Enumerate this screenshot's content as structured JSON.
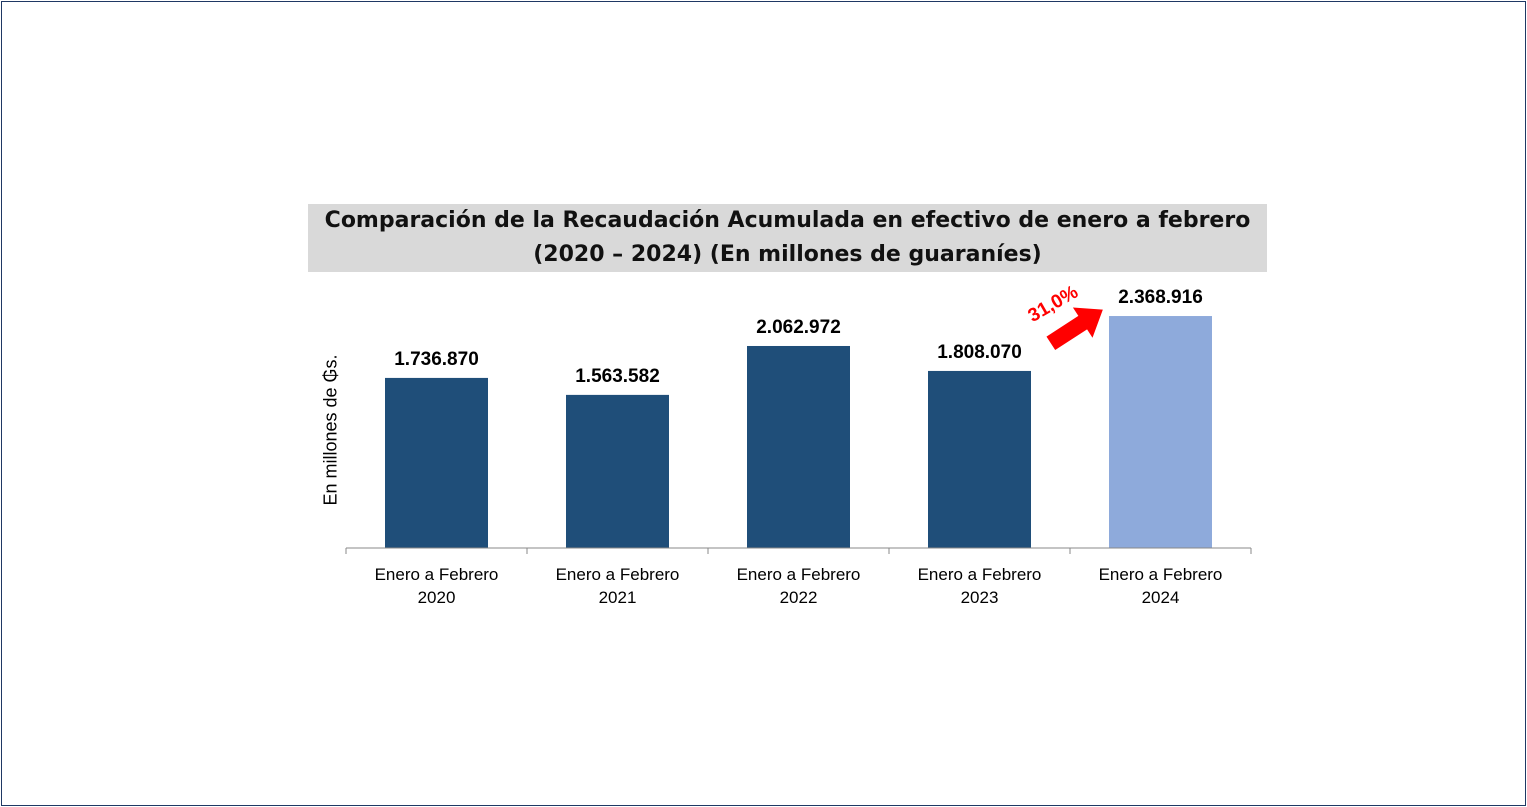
{
  "chart_data": {
    "type": "bar",
    "title_line1": "Comparación de la Recaudación Acumulada en efectivo de enero a febrero",
    "title_line2": "(2020 – 2024) (En millones de guaraníes)",
    "ylabel": "En millones de ₲s.",
    "xlabel": "",
    "categories": [
      [
        "Enero a Febrero",
        "2020"
      ],
      [
        "Enero a Febrero",
        "2021"
      ],
      [
        "Enero a Febrero",
        "2022"
      ],
      [
        "Enero a Febrero",
        "2023"
      ],
      [
        "Enero a Febrero",
        "2024"
      ]
    ],
    "values": [
      1736870,
      1563582,
      2062972,
      1808070,
      2368916
    ],
    "data_labels": [
      "1.736.870",
      "1.563.582",
      "2.062.972",
      "1.808.070",
      "2.368.916"
    ],
    "ylim": [
      0,
      2600000
    ],
    "grid": false,
    "legend": "none",
    "colors": {
      "default": "#1f4e79",
      "highlight": "#8eaadb"
    },
    "highlight_index": 4,
    "annotation": {
      "text": "31,0%",
      "color": "#ff0000",
      "icon": "arrow-up-right-icon"
    }
  }
}
